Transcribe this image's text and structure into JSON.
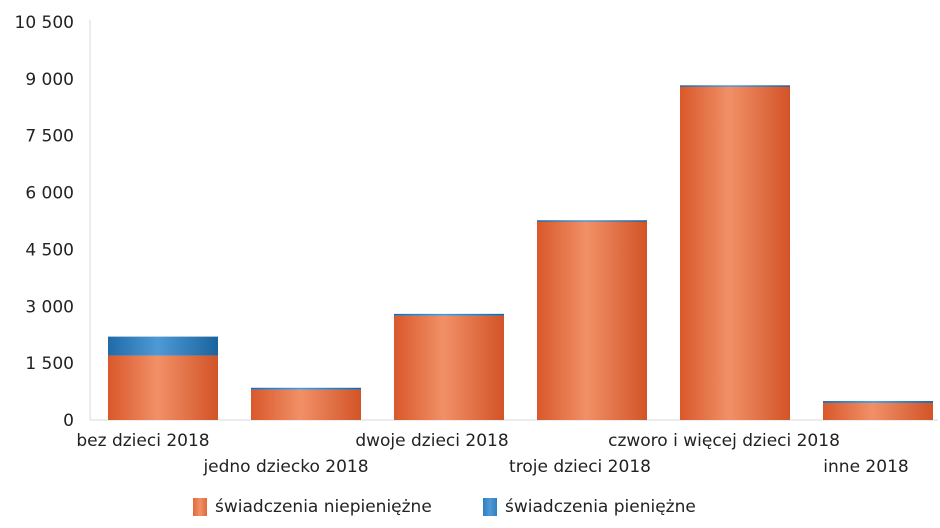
{
  "chart_data": {
    "type": "bar",
    "stacked": true,
    "categories": [
      "bez dzieci 2018",
      "jedno dziecko 2018",
      "dwoje dzieci 2018",
      "troje dzieci 2018",
      "czworo i więcej dzieci 2018",
      "inne 2018"
    ],
    "series": [
      {
        "name": "świadczenia niepieniężne",
        "color": "#E06B3A",
        "values": [
          1700,
          800,
          2750,
          5250,
          8800,
          450
        ]
      },
      {
        "name": "świadczenia pieniężne",
        "color": "#2F7FC0",
        "values": [
          500,
          50,
          50,
          20,
          30,
          50
        ]
      }
    ],
    "yticks": [
      "0",
      "1 500",
      "3 000",
      "4 500",
      "6 000",
      "7 500",
      "9 000",
      "10 500"
    ],
    "ylim": [
      0,
      10500
    ],
    "grid": false,
    "legend_position": "bottom"
  }
}
